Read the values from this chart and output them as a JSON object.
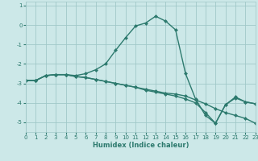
{
  "xlabel": "Humidex (Indice chaleur)",
  "bg_color": "#cce8e8",
  "grid_color": "#a0c8c8",
  "line_color": "#2d7a6e",
  "line1_x": [
    0,
    1,
    2,
    3,
    4,
    5,
    6,
    7,
    8,
    9,
    10,
    11,
    12,
    13,
    14,
    15,
    16,
    17,
    18,
    19,
    20,
    21,
    22,
    23
  ],
  "line1_y": [
    -2.85,
    -2.85,
    -2.6,
    -2.55,
    -2.55,
    -2.6,
    -2.5,
    -2.3,
    -2.0,
    -1.3,
    -0.65,
    -0.05,
    0.1,
    0.45,
    0.2,
    -0.25,
    -2.5,
    -3.8,
    -4.65,
    -5.05,
    -4.1,
    -3.7,
    -3.95,
    -4.05
  ],
  "line2_x": [
    0,
    1,
    2,
    3,
    4,
    5,
    6,
    7,
    8,
    9,
    10,
    11,
    12,
    13,
    14,
    15,
    16,
    17,
    18,
    19,
    20,
    21,
    22,
    23
  ],
  "line2_y": [
    -2.85,
    -2.85,
    -2.6,
    -2.55,
    -2.55,
    -2.65,
    -2.7,
    -2.8,
    -2.9,
    -3.0,
    -3.1,
    -3.2,
    -3.3,
    -3.4,
    -3.5,
    -3.55,
    -3.65,
    -3.85,
    -4.05,
    -4.3,
    -4.5,
    -4.65,
    -4.8,
    -5.05
  ],
  "line3_x": [
    0,
    1,
    2,
    3,
    4,
    5,
    6,
    7,
    8,
    9,
    10,
    11,
    12,
    13,
    14,
    15,
    16,
    17,
    18,
    19,
    20,
    21,
    22,
    23
  ],
  "line3_y": [
    -2.85,
    -2.85,
    -2.6,
    -2.55,
    -2.55,
    -2.65,
    -2.7,
    -2.8,
    -2.9,
    -3.0,
    -3.1,
    -3.2,
    -3.35,
    -3.45,
    -3.55,
    -3.65,
    -3.8,
    -4.0,
    -4.5,
    -5.05,
    -4.1,
    -3.75,
    -3.95,
    -4.05
  ],
  "xlim": [
    0,
    23
  ],
  "ylim": [
    -5.5,
    1.2
  ],
  "yticks": [
    1,
    0,
    -1,
    -2,
    -3,
    -4,
    -5
  ],
  "xticks": [
    0,
    1,
    2,
    3,
    4,
    5,
    6,
    7,
    8,
    9,
    10,
    11,
    12,
    13,
    14,
    15,
    16,
    17,
    18,
    19,
    20,
    21,
    22,
    23
  ],
  "marker": "D",
  "markersize": 2.5,
  "linewidth": 1.0
}
